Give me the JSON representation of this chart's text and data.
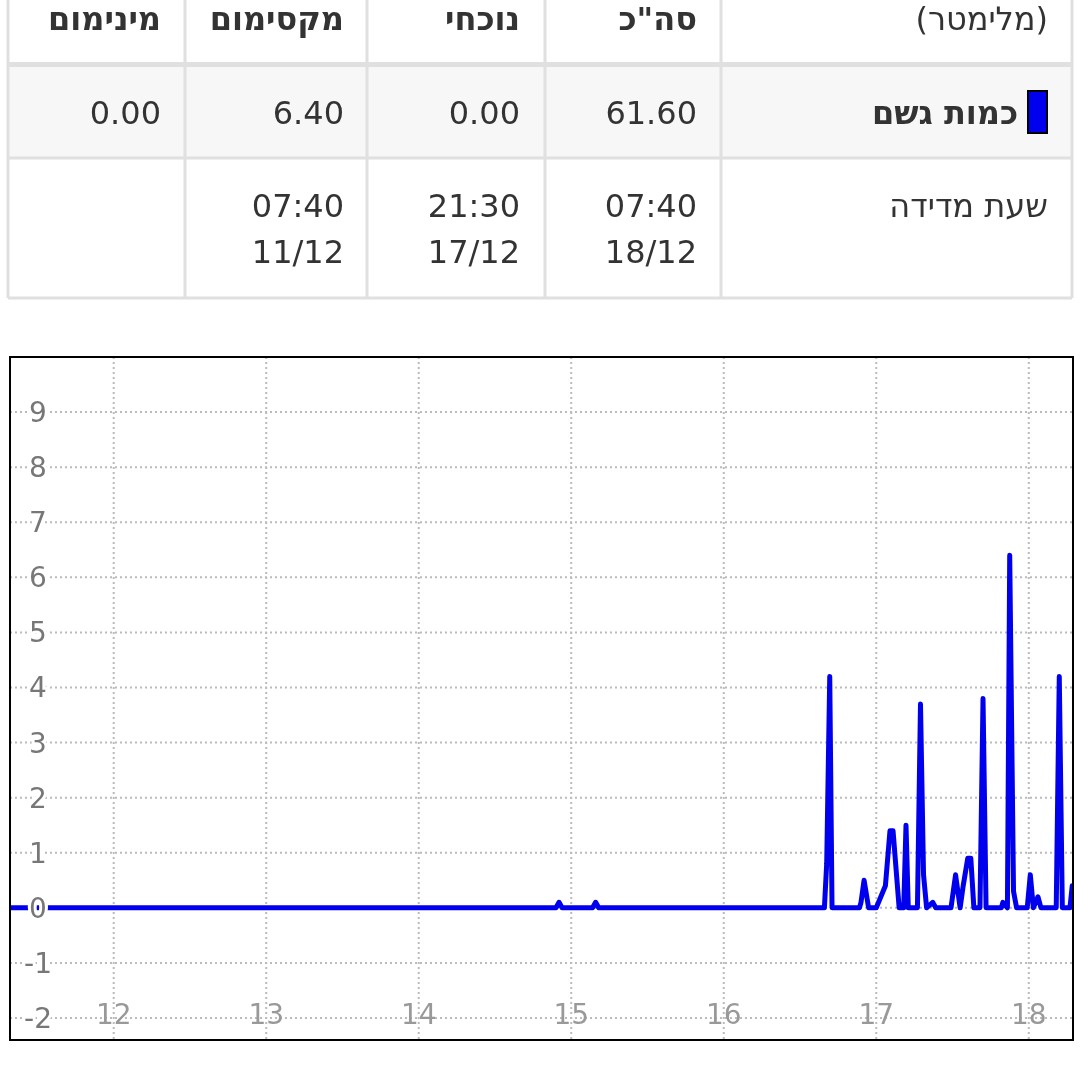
{
  "chart_data": {
    "type": "line",
    "x": [
      11.32,
      14.9,
      14.92,
      14.94,
      15.14,
      15.16,
      15.18,
      16.66,
      16.675,
      16.695,
      16.71,
      16.89,
      16.9,
      16.92,
      16.95,
      17.0,
      17.03,
      17.06,
      17.09,
      17.11,
      17.13,
      17.15,
      17.18,
      17.195,
      17.21,
      17.27,
      17.29,
      17.31,
      17.33,
      17.37,
      17.39,
      17.49,
      17.52,
      17.55,
      17.57,
      17.6,
      17.62,
      17.64,
      17.68,
      17.7,
      17.72,
      17.82,
      17.83,
      17.86,
      17.875,
      17.9,
      17.92,
      17.99,
      18.01,
      18.03,
      18.06,
      18.08,
      18.18,
      18.2,
      18.22,
      18.27,
      18.285
    ],
    "series": [
      {
        "name": "כמות גשם",
        "color": "#0000ee",
        "values": [
          0,
          0,
          0.1,
          0,
          0,
          0.1,
          0,
          0,
          0.8,
          4.2,
          0,
          0,
          0.1,
          0.5,
          0,
          0,
          0.2,
          0.4,
          1.4,
          1.4,
          0.7,
          0,
          0,
          1.5,
          0,
          0,
          3.7,
          0.6,
          0,
          0.1,
          0,
          0,
          0.6,
          0,
          0.4,
          0.9,
          0.9,
          0,
          0,
          3.8,
          0,
          0,
          0.1,
          0,
          6.4,
          0.3,
          0,
          0,
          0.6,
          0,
          0.2,
          0,
          0,
          4.2,
          0,
          0,
          0.4
        ]
      }
    ],
    "xlim": [
      11.32,
      18.29
    ],
    "xticks": [
      12,
      13,
      14,
      15,
      16,
      17,
      18
    ],
    "ylim": [
      -2.4,
      10
    ],
    "yticks": [
      -2,
      -1,
      0,
      1,
      2,
      3,
      4,
      5,
      6,
      7,
      8,
      9
    ],
    "grid": true,
    "legend": "top",
    "line_style": "solid",
    "annotations": [
      "(מלימטר)",
      "סה\"כ",
      "נוכחי",
      "מקסימום",
      "מינימום",
      "61.60",
      "0.00",
      "6.40",
      "0.00",
      "שעת מדידה",
      "07:40\n18/12",
      "21:30\n17/12",
      "07:40\n11/12"
    ]
  }
}
